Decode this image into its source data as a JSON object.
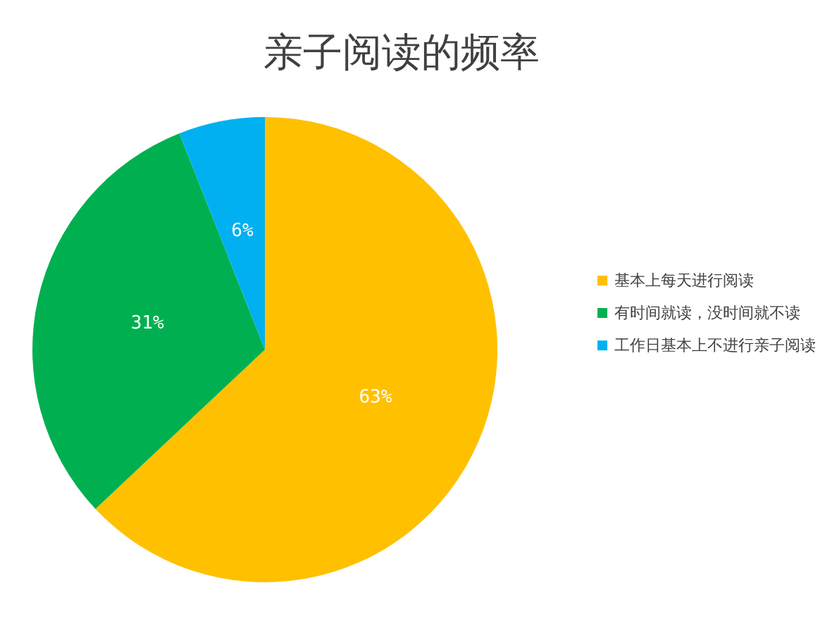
{
  "chart_data": {
    "type": "pie",
    "title": "亲子阅读的频率",
    "categories": [
      "基本上每天进行阅读",
      "有时间就读，没时间就不读",
      "工作日基本上不进行亲子阅读"
    ],
    "values": [
      63,
      31,
      6
    ],
    "colors": [
      "#ffc000",
      "#00b050",
      "#00b0f0"
    ],
    "value_labels": [
      "63%",
      "31%",
      "6%"
    ],
    "legend": "right"
  }
}
